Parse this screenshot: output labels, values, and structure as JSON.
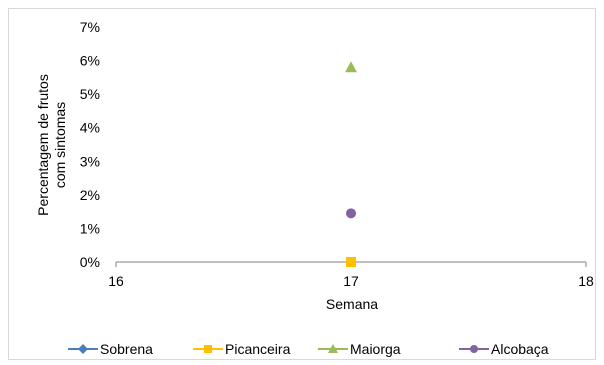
{
  "chart_data": {
    "type": "scatter",
    "title": "",
    "xlabel": "Semana",
    "ylabel": "Percentagem de frutos com sintomas",
    "ylabel_lines": [
      "Percentagem de frutos",
      "com sintomas"
    ],
    "xlim": [
      16,
      18
    ],
    "ylim": [
      0,
      0.07
    ],
    "x_ticks": [
      16,
      17,
      18
    ],
    "x_tick_labels": [
      "16",
      "17",
      "18"
    ],
    "y_ticks": [
      0,
      0.01,
      0.02,
      0.03,
      0.04,
      0.05,
      0.06,
      0.07
    ],
    "y_tick_labels": [
      "0%",
      "1%",
      "2%",
      "3%",
      "4%",
      "5%",
      "6%",
      "7%"
    ],
    "grid": false,
    "legend_position": "bottom",
    "series": [
      {
        "name": "Sobrena",
        "color": "#4a7ebb",
        "marker": "diamond",
        "points": []
      },
      {
        "name": "Picanceira",
        "color": "#ffc000",
        "marker": "square",
        "points": [
          {
            "x": 17,
            "y": 0.0
          }
        ]
      },
      {
        "name": "Maiorga",
        "color": "#9bbb59",
        "marker": "triangle",
        "points": [
          {
            "x": 17,
            "y": 0.058
          }
        ]
      },
      {
        "name": "Alcobaça",
        "color": "#8064a2",
        "marker": "circle",
        "points": [
          {
            "x": 17,
            "y": 0.0145
          }
        ]
      }
    ]
  }
}
